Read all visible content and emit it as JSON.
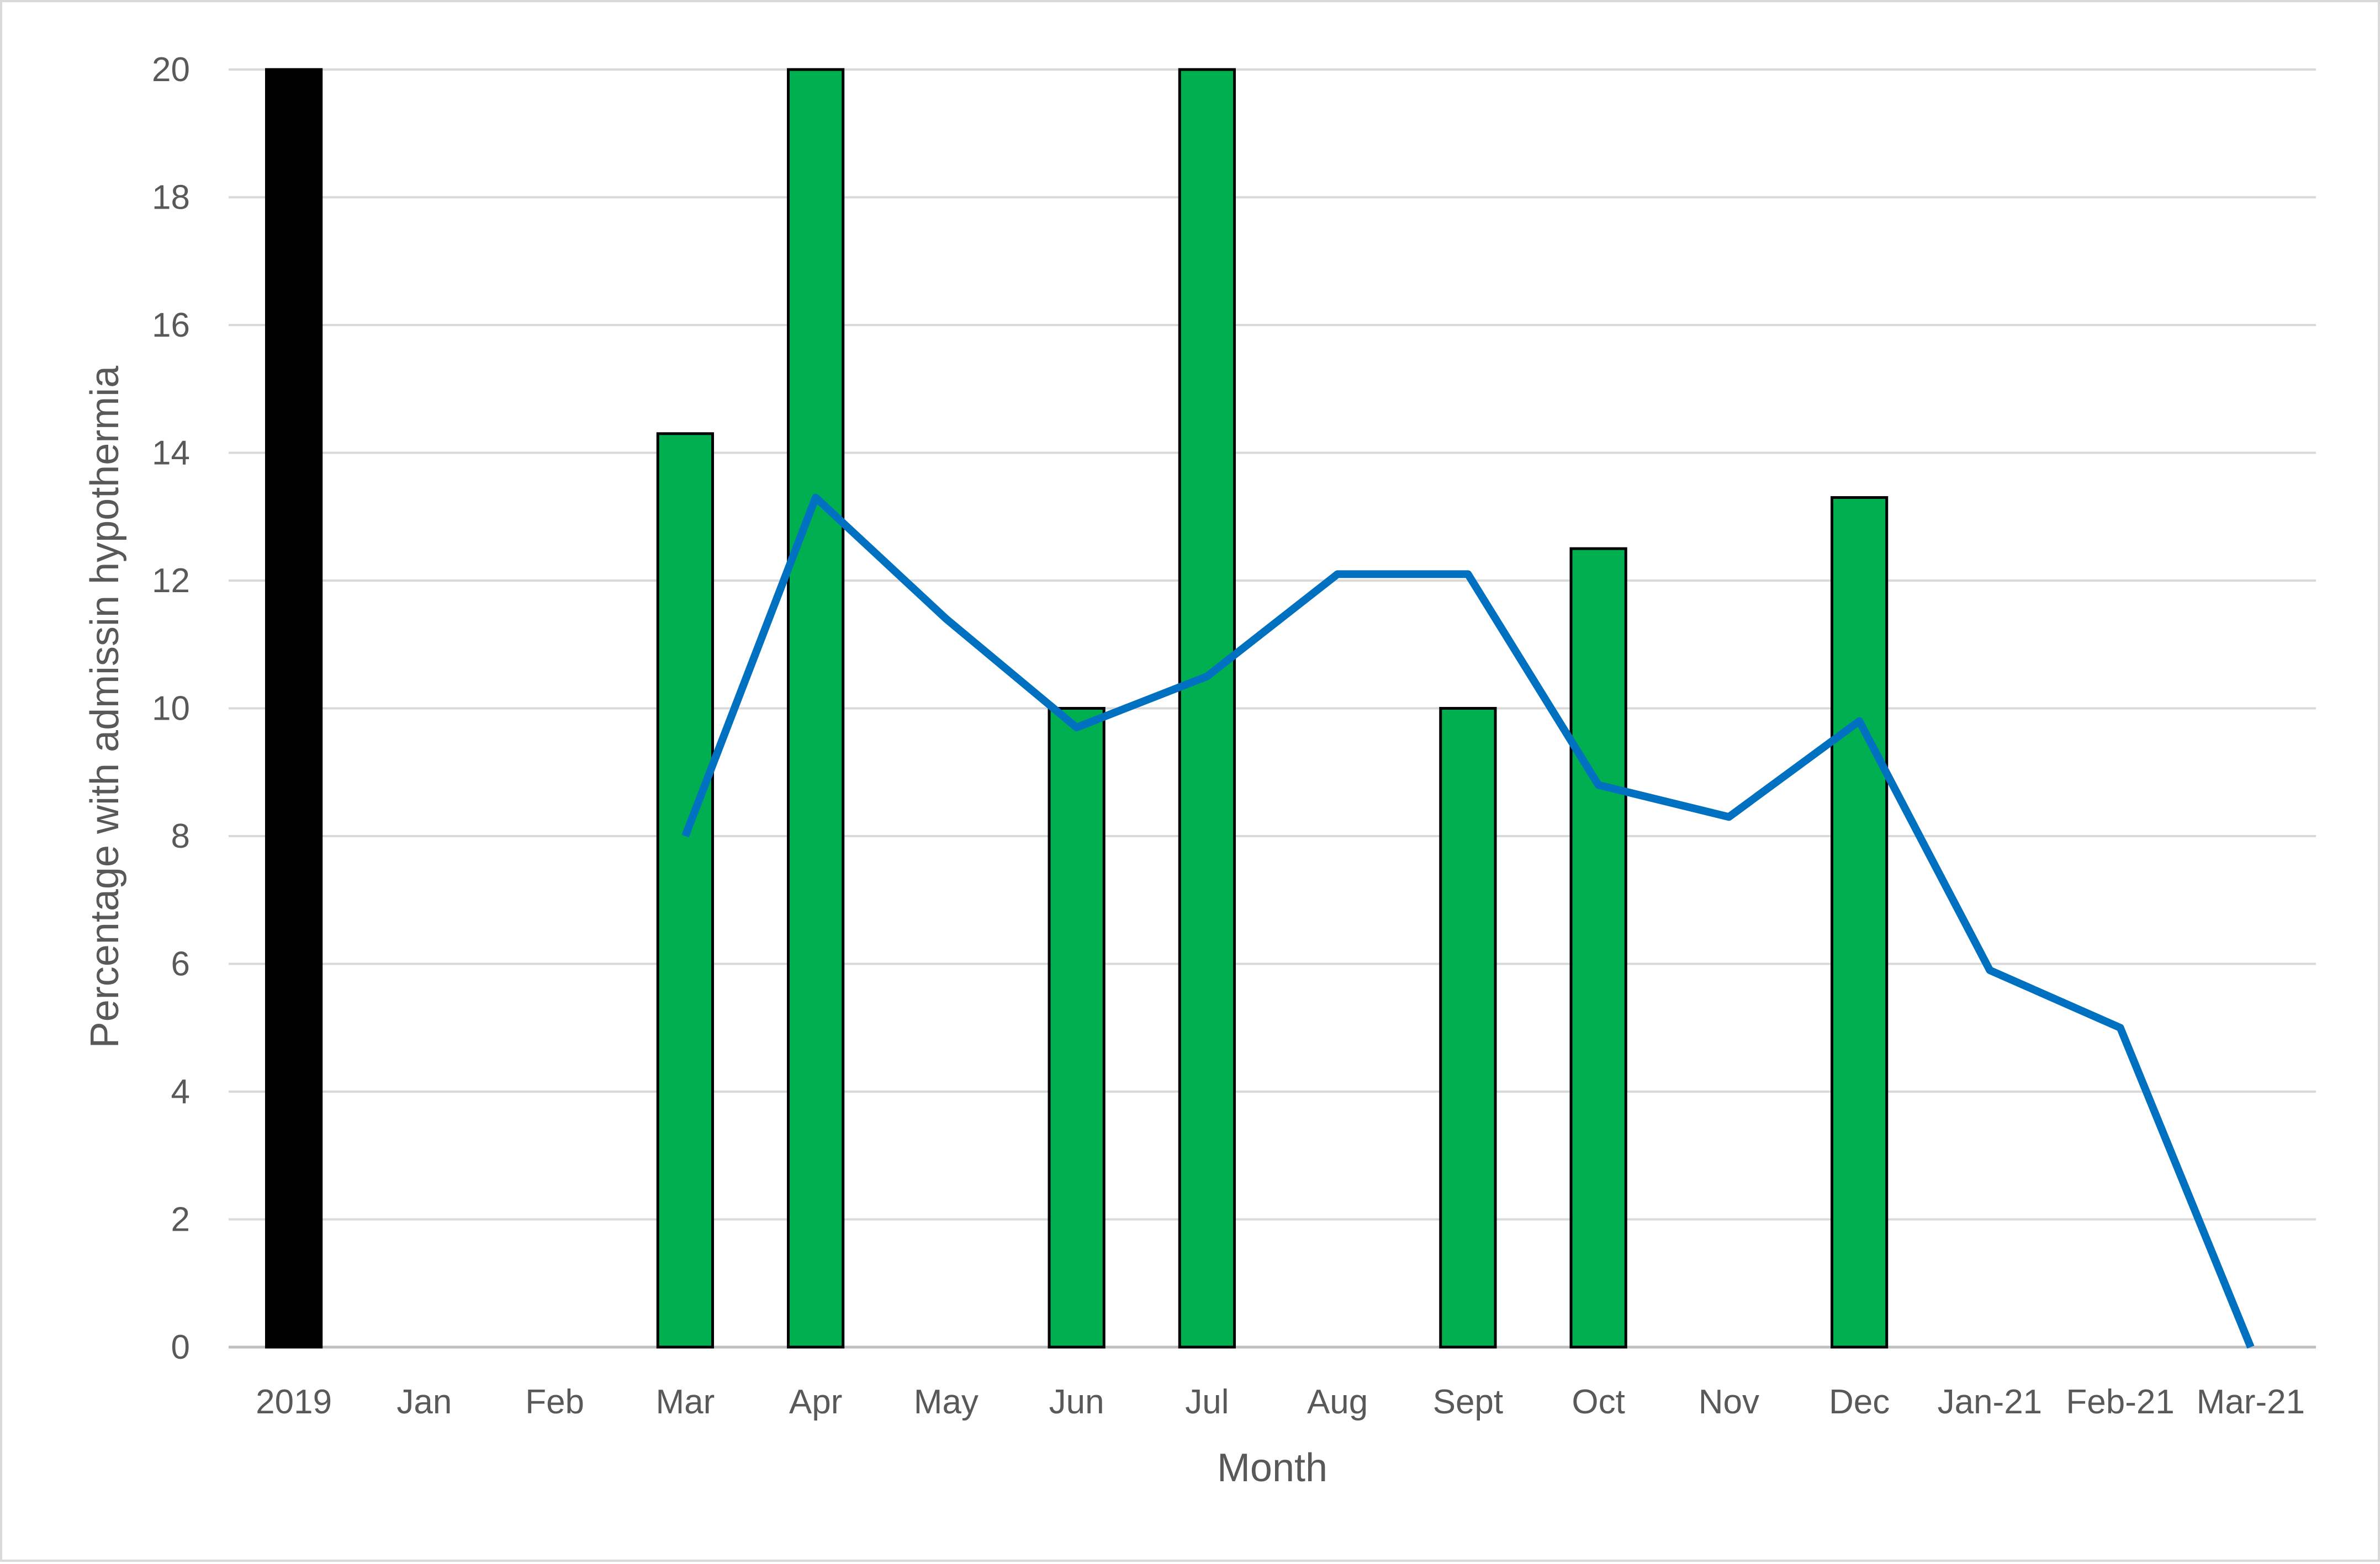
{
  "chart_data": {
    "type": "bar",
    "title": "",
    "xlabel": "Month",
    "ylabel": "Percentage with admissin hypothermia",
    "ylim": [
      0,
      20
    ],
    "yticks": [
      0,
      2,
      4,
      6,
      8,
      10,
      12,
      14,
      16,
      18,
      20
    ],
    "grid": true,
    "legend": "none",
    "categories": [
      "2019",
      "Jan",
      "Feb",
      "Mar",
      "Apr",
      "May",
      "Jun",
      "Jul",
      "Aug",
      "Sept",
      "Oct",
      "Nov",
      "Dec",
      "Jan-21",
      "Feb-21",
      "Mar-21"
    ],
    "bars": {
      "values": [
        20,
        null,
        null,
        14.3,
        20,
        null,
        10,
        20,
        null,
        10,
        12.5,
        null,
        13.3,
        null,
        null,
        null
      ],
      "colors": [
        "#000000",
        null,
        null,
        "#00b050",
        "#00b050",
        null,
        "#00b050",
        "#00b050",
        null,
        "#00b050",
        "#00b050",
        null,
        "#00b050",
        null,
        null,
        null
      ],
      "outline": "#000000"
    },
    "line": {
      "color": "#0070c0",
      "values": [
        null,
        null,
        null,
        8,
        13.3,
        11.4,
        9.7,
        10.5,
        12.1,
        12.1,
        8.8,
        8.3,
        9.8,
        5.9,
        5,
        0
      ]
    }
  }
}
